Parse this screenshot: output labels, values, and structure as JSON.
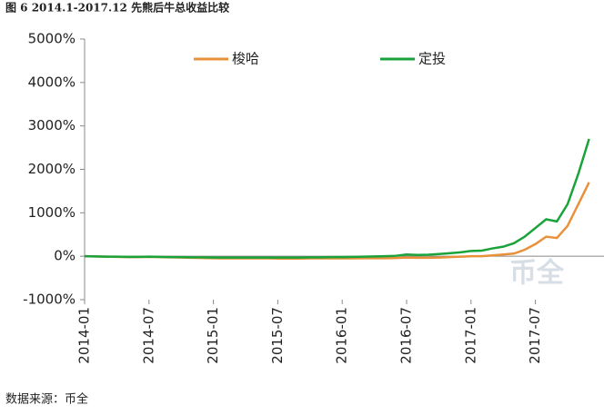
{
  "chart_data": {
    "type": "line",
    "title": "图 6 2014.1-2017.12 先熊后牛总收益比较",
    "source": "数据来源：币全",
    "watermark": "币全",
    "x": [
      "2014-01",
      "2014-02",
      "2014-03",
      "2014-04",
      "2014-05",
      "2014-06",
      "2014-07",
      "2014-08",
      "2014-09",
      "2014-10",
      "2014-11",
      "2014-12",
      "2015-01",
      "2015-02",
      "2015-03",
      "2015-04",
      "2015-05",
      "2015-06",
      "2015-07",
      "2015-08",
      "2015-09",
      "2015-10",
      "2015-11",
      "2015-12",
      "2016-01",
      "2016-02",
      "2016-03",
      "2016-04",
      "2016-05",
      "2016-06",
      "2016-07",
      "2016-08",
      "2016-09",
      "2016-10",
      "2016-11",
      "2016-12",
      "2017-01",
      "2017-02",
      "2017-03",
      "2017-04",
      "2017-05",
      "2017-06",
      "2017-07",
      "2017-08",
      "2017-09",
      "2017-10",
      "2017-11",
      "2017-12"
    ],
    "series": [
      {
        "name": "梭哈",
        "color": "#e8913a",
        "values": [
          0,
          -5,
          -10,
          -15,
          -20,
          -20,
          -15,
          -20,
          -25,
          -30,
          -35,
          -40,
          -45,
          -50,
          -50,
          -50,
          -50,
          -50,
          -55,
          -55,
          -55,
          -50,
          -50,
          -45,
          -50,
          -50,
          -45,
          -45,
          -45,
          -40,
          -30,
          -35,
          -35,
          -30,
          -20,
          -10,
          0,
          0,
          20,
          40,
          60,
          150,
          280,
          450,
          420,
          700,
          1200,
          1700
        ]
      },
      {
        "name": "定投",
        "color": "#1aa33a",
        "values": [
          0,
          -5,
          -10,
          -10,
          -15,
          -15,
          -10,
          -15,
          -20,
          -20,
          -25,
          -25,
          -30,
          -30,
          -30,
          -30,
          -30,
          -30,
          -30,
          -30,
          -30,
          -25,
          -25,
          -20,
          -20,
          -15,
          -10,
          -5,
          0,
          10,
          40,
          30,
          35,
          50,
          70,
          90,
          120,
          130,
          180,
          220,
          300,
          450,
          650,
          850,
          800,
          1200,
          1900,
          2700
        ]
      }
    ],
    "ylim": [
      -1000,
      5000
    ],
    "yticks": [
      {
        "value": -1000,
        "label": "-1000%"
      },
      {
        "value": 0,
        "label": "0%"
      },
      {
        "value": 1000,
        "label": "1000%"
      },
      {
        "value": 2000,
        "label": "2000%"
      },
      {
        "value": 3000,
        "label": "3000%"
      },
      {
        "value": 4000,
        "label": "4000%"
      },
      {
        "value": 5000,
        "label": "5000%"
      }
    ],
    "xticks": [
      "2014-01",
      "2014-07",
      "2015-01",
      "2015-07",
      "2016-01",
      "2016-07",
      "2017-01",
      "2017-07"
    ],
    "grid": false
  }
}
